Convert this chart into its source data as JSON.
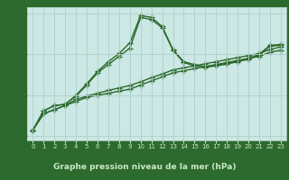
{
  "x": [
    0,
    1,
    2,
    3,
    4,
    5,
    6,
    7,
    8,
    9,
    10,
    11,
    12,
    13,
    14,
    15,
    16,
    17,
    18,
    19,
    20,
    21,
    22,
    23
  ],
  "series": [
    [
      1021.15,
      1021.55,
      1021.65,
      1021.75,
      1021.85,
      1021.95,
      1022.0,
      1022.05,
      1022.1,
      1022.15,
      1022.25,
      1022.35,
      1022.45,
      1022.55,
      1022.6,
      1022.65,
      1022.7,
      1022.75,
      1022.8,
      1022.85,
      1022.9,
      1022.95,
      1023.05,
      1023.1
    ],
    [
      1021.15,
      1021.55,
      1021.65,
      1021.75,
      1021.9,
      1021.98,
      1022.05,
      1022.12,
      1022.18,
      1022.24,
      1022.33,
      1022.43,
      1022.52,
      1022.62,
      1022.67,
      1022.72,
      1022.77,
      1022.82,
      1022.87,
      1022.92,
      1022.97,
      1023.02,
      1023.12,
      1023.18
    ],
    [
      1021.15,
      1021.62,
      1021.75,
      1021.78,
      1021.98,
      1022.25,
      1022.55,
      1022.75,
      1022.95,
      1023.15,
      1023.9,
      1023.85,
      1023.65,
      1023.1,
      1022.8,
      1022.72,
      1022.68,
      1022.72,
      1022.76,
      1022.82,
      1022.88,
      1022.98,
      1023.2,
      1023.22
    ],
    [
      1021.15,
      1021.62,
      1021.75,
      1021.78,
      1022.0,
      1022.28,
      1022.58,
      1022.82,
      1023.02,
      1023.28,
      1023.95,
      1023.9,
      1023.68,
      1023.12,
      1022.82,
      1022.75,
      1022.7,
      1022.74,
      1022.78,
      1022.84,
      1022.9,
      1023.0,
      1023.22,
      1023.24
    ]
  ],
  "line_color": "#2d6a2d",
  "marker": "+",
  "markersize": 4,
  "markeredgewidth": 1.0,
  "linewidth": 1.0,
  "plot_bg_color": "#cce8e4",
  "bottom_bg_color": "#2d6a2d",
  "bottom_text_color": "#c8e8c8",
  "title": "Graphe pression niveau de la mer (hPa)",
  "ylim": [
    1020.9,
    1024.15
  ],
  "yticks": [
    1021,
    1022,
    1023,
    1024
  ],
  "xlim": [
    -0.5,
    23.5
  ],
  "xticks": [
    0,
    1,
    2,
    3,
    4,
    5,
    6,
    7,
    8,
    9,
    10,
    11,
    12,
    13,
    14,
    15,
    16,
    17,
    18,
    19,
    20,
    21,
    22,
    23
  ],
  "grid_color": "#aed0cc",
  "tick_color": "#2d6a2d",
  "ylabel_color": "#2d6a2d"
}
